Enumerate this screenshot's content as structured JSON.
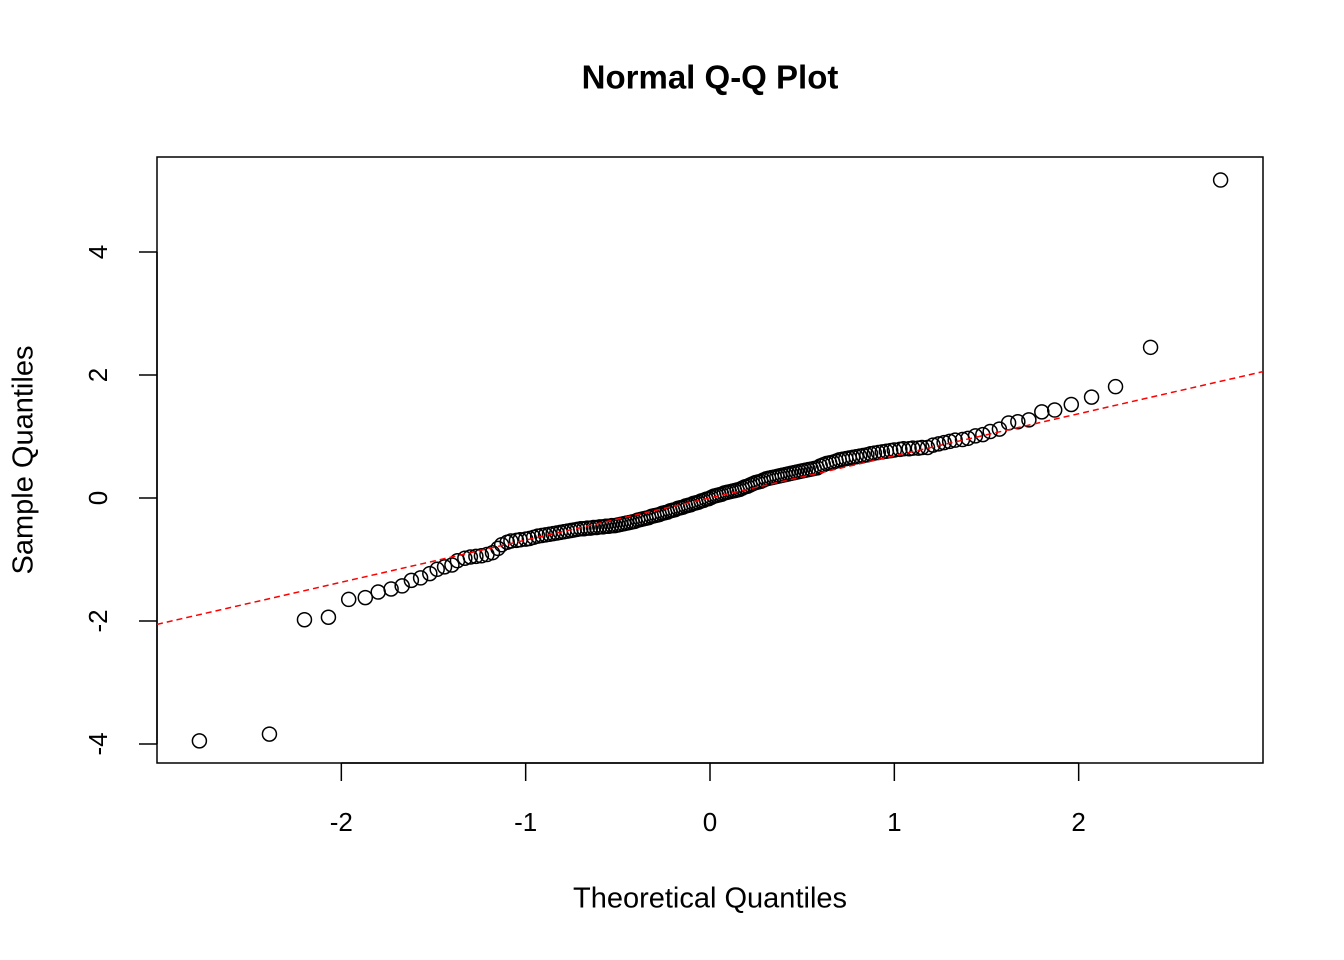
{
  "chart_data": {
    "type": "scatter",
    "title": "Normal Q-Q Plot",
    "xlabel": "Theoretical Quantiles",
    "ylabel": "Sample Quantiles",
    "xlim": [
      -3,
      3
    ],
    "ylim": [
      -4.31,
      5.545
    ],
    "xticks": [
      -2,
      -1,
      0,
      1,
      2
    ],
    "yticks": [
      -4,
      -2,
      0,
      2,
      4
    ],
    "color": "#000000",
    "reference_line": {
      "intercept": 0,
      "slope": 0.685,
      "color": "#ff0000",
      "style": "dashed"
    },
    "x": [
      -2.77,
      -2.39,
      -2.2,
      -2.07,
      -1.96,
      -1.87,
      -1.8,
      -1.73,
      -1.67,
      -1.62,
      -1.57,
      -1.52,
      -1.48,
      -1.44,
      -1.4,
      -1.37,
      -1.33,
      -1.3,
      -1.27,
      -1.24,
      -1.21,
      -1.18,
      -1.15,
      -1.13,
      -1.1,
      -1.08,
      -1.05,
      -1.03,
      -1.0,
      -0.98,
      -0.957,
      -0.935,
      -0.913,
      -0.892,
      -0.871,
      -0.851,
      -0.831,
      -0.812,
      -0.793,
      -0.774,
      -0.755,
      -0.737,
      -0.719,
      -0.701,
      -0.684,
      -0.666,
      -0.649,
      -0.632,
      -0.615,
      -0.598,
      -0.581,
      -0.565,
      -0.549,
      -0.533,
      -0.517,
      -0.501,
      -0.485,
      -0.469,
      -0.454,
      -0.438,
      -0.423,
      -0.408,
      -0.392,
      -0.377,
      -0.363,
      -0.348,
      -0.333,
      -0.318,
      -0.304,
      -0.289,
      -0.275,
      -0.26,
      -0.246,
      -0.231,
      -0.217,
      -0.203,
      -0.189,
      -0.175,
      -0.161,
      -0.147,
      -0.133,
      -0.119,
      -0.105,
      -0.091,
      -0.077,
      -0.063,
      -0.049,
      -0.035,
      -0.021,
      -0.007,
      0.007,
      0.021,
      0.035,
      0.049,
      0.063,
      0.077,
      0.091,
      0.105,
      0.119,
      0.133,
      0.147,
      0.161,
      0.175,
      0.189,
      0.203,
      0.217,
      0.231,
      0.246,
      0.26,
      0.275,
      0.289,
      0.304,
      0.318,
      0.333,
      0.348,
      0.363,
      0.377,
      0.392,
      0.408,
      0.423,
      0.438,
      0.454,
      0.469,
      0.485,
      0.501,
      0.517,
      0.533,
      0.549,
      0.565,
      0.581,
      0.598,
      0.615,
      0.632,
      0.649,
      0.666,
      0.684,
      0.701,
      0.719,
      0.737,
      0.755,
      0.774,
      0.793,
      0.812,
      0.831,
      0.851,
      0.871,
      0.892,
      0.913,
      0.935,
      0.957,
      0.98,
      1.0,
      1.03,
      1.05,
      1.08,
      1.1,
      1.13,
      1.15,
      1.18,
      1.21,
      1.24,
      1.27,
      1.3,
      1.33,
      1.37,
      1.4,
      1.44,
      1.48,
      1.52,
      1.57,
      1.62,
      1.67,
      1.73,
      1.8,
      1.87,
      1.96,
      2.07,
      2.2,
      2.39,
      2.77
    ],
    "values": [
      -3.95,
      -3.84,
      -1.98,
      -1.94,
      -1.65,
      -1.62,
      -1.53,
      -1.48,
      -1.43,
      -1.34,
      -1.3,
      -1.23,
      -1.16,
      -1.12,
      -1.09,
      -1.02,
      -0.98,
      -0.96,
      -0.95,
      -0.94,
      -0.92,
      -0.89,
      -0.82,
      -0.76,
      -0.72,
      -0.7,
      -0.69,
      -0.68,
      -0.67,
      -0.66,
      -0.64,
      -0.62,
      -0.61,
      -0.6,
      -0.59,
      -0.58,
      -0.57,
      -0.56,
      -0.55,
      -0.54,
      -0.53,
      -0.52,
      -0.51,
      -0.5,
      -0.5,
      -0.49,
      -0.49,
      -0.48,
      -0.48,
      -0.47,
      -0.47,
      -0.46,
      -0.46,
      -0.45,
      -0.45,
      -0.44,
      -0.43,
      -0.42,
      -0.41,
      -0.4,
      -0.39,
      -0.38,
      -0.36,
      -0.35,
      -0.34,
      -0.33,
      -0.32,
      -0.3,
      -0.29,
      -0.28,
      -0.27,
      -0.25,
      -0.24,
      -0.23,
      -0.21,
      -0.2,
      -0.19,
      -0.17,
      -0.16,
      -0.15,
      -0.13,
      -0.12,
      -0.11,
      -0.09,
      -0.08,
      -0.07,
      -0.05,
      -0.04,
      -0.02,
      -0.01,
      0.01,
      0.03,
      0.04,
      0.05,
      0.06,
      0.08,
      0.09,
      0.1,
      0.11,
      0.12,
      0.13,
      0.14,
      0.16,
      0.18,
      0.19,
      0.21,
      0.23,
      0.25,
      0.26,
      0.27,
      0.29,
      0.31,
      0.32,
      0.33,
      0.34,
      0.35,
      0.36,
      0.37,
      0.38,
      0.39,
      0.4,
      0.41,
      0.42,
      0.43,
      0.44,
      0.45,
      0.46,
      0.47,
      0.48,
      0.49,
      0.52,
      0.54,
      0.56,
      0.57,
      0.58,
      0.6,
      0.62,
      0.63,
      0.64,
      0.65,
      0.66,
      0.67,
      0.68,
      0.69,
      0.7,
      0.72,
      0.73,
      0.74,
      0.75,
      0.76,
      0.77,
      0.78,
      0.79,
      0.8,
      0.8,
      0.81,
      0.81,
      0.82,
      0.82,
      0.86,
      0.88,
      0.9,
      0.92,
      0.94,
      0.95,
      0.97,
      1.01,
      1.03,
      1.08,
      1.12,
      1.22,
      1.24,
      1.27,
      1.4,
      1.43,
      1.52,
      1.64,
      1.81,
      2.45,
      5.17
    ]
  }
}
